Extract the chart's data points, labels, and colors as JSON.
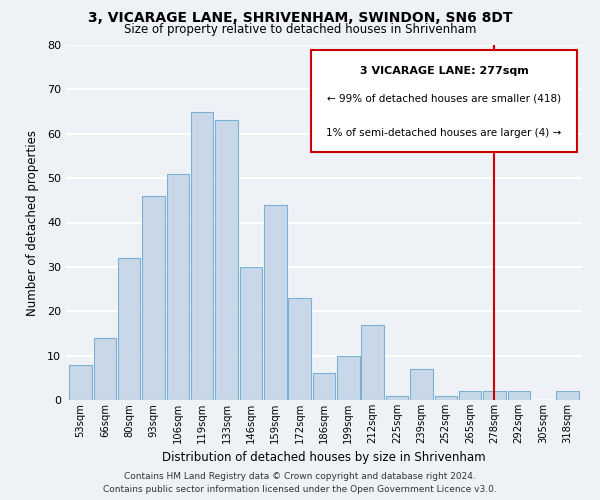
{
  "title": "3, VICARAGE LANE, SHRIVENHAM, SWINDON, SN6 8DT",
  "subtitle": "Size of property relative to detached houses in Shrivenham",
  "xlabel": "Distribution of detached houses by size in Shrivenham",
  "ylabel": "Number of detached properties",
  "bar_labels": [
    "53sqm",
    "66sqm",
    "80sqm",
    "93sqm",
    "106sqm",
    "119sqm",
    "133sqm",
    "146sqm",
    "159sqm",
    "172sqm",
    "186sqm",
    "199sqm",
    "212sqm",
    "225sqm",
    "239sqm",
    "252sqm",
    "265sqm",
    "278sqm",
    "292sqm",
    "305sqm",
    "318sqm"
  ],
  "bar_values": [
    8,
    14,
    32,
    46,
    51,
    65,
    63,
    30,
    44,
    23,
    6,
    10,
    17,
    1,
    7,
    1,
    2,
    2,
    2,
    0,
    2
  ],
  "bar_color": "#c8d8e8",
  "bar_edge_color": "#7bafd4",
  "ylim": [
    0,
    80
  ],
  "yticks": [
    0,
    10,
    20,
    30,
    40,
    50,
    60,
    70,
    80
  ],
  "vline_x": 17,
  "vline_color": "#cc0000",
  "legend_title": "3 VICARAGE LANE: 277sqm",
  "legend_line1": "← 99% of detached houses are smaller (418)",
  "legend_line2": "1% of semi-detached houses are larger (4) →",
  "legend_box_color": "#cc0000",
  "footer_line1": "Contains HM Land Registry data © Crown copyright and database right 2024.",
  "footer_line2": "Contains public sector information licensed under the Open Government Licence v3.0.",
  "bg_color": "#eef2f7",
  "grid_color": "#ffffff"
}
